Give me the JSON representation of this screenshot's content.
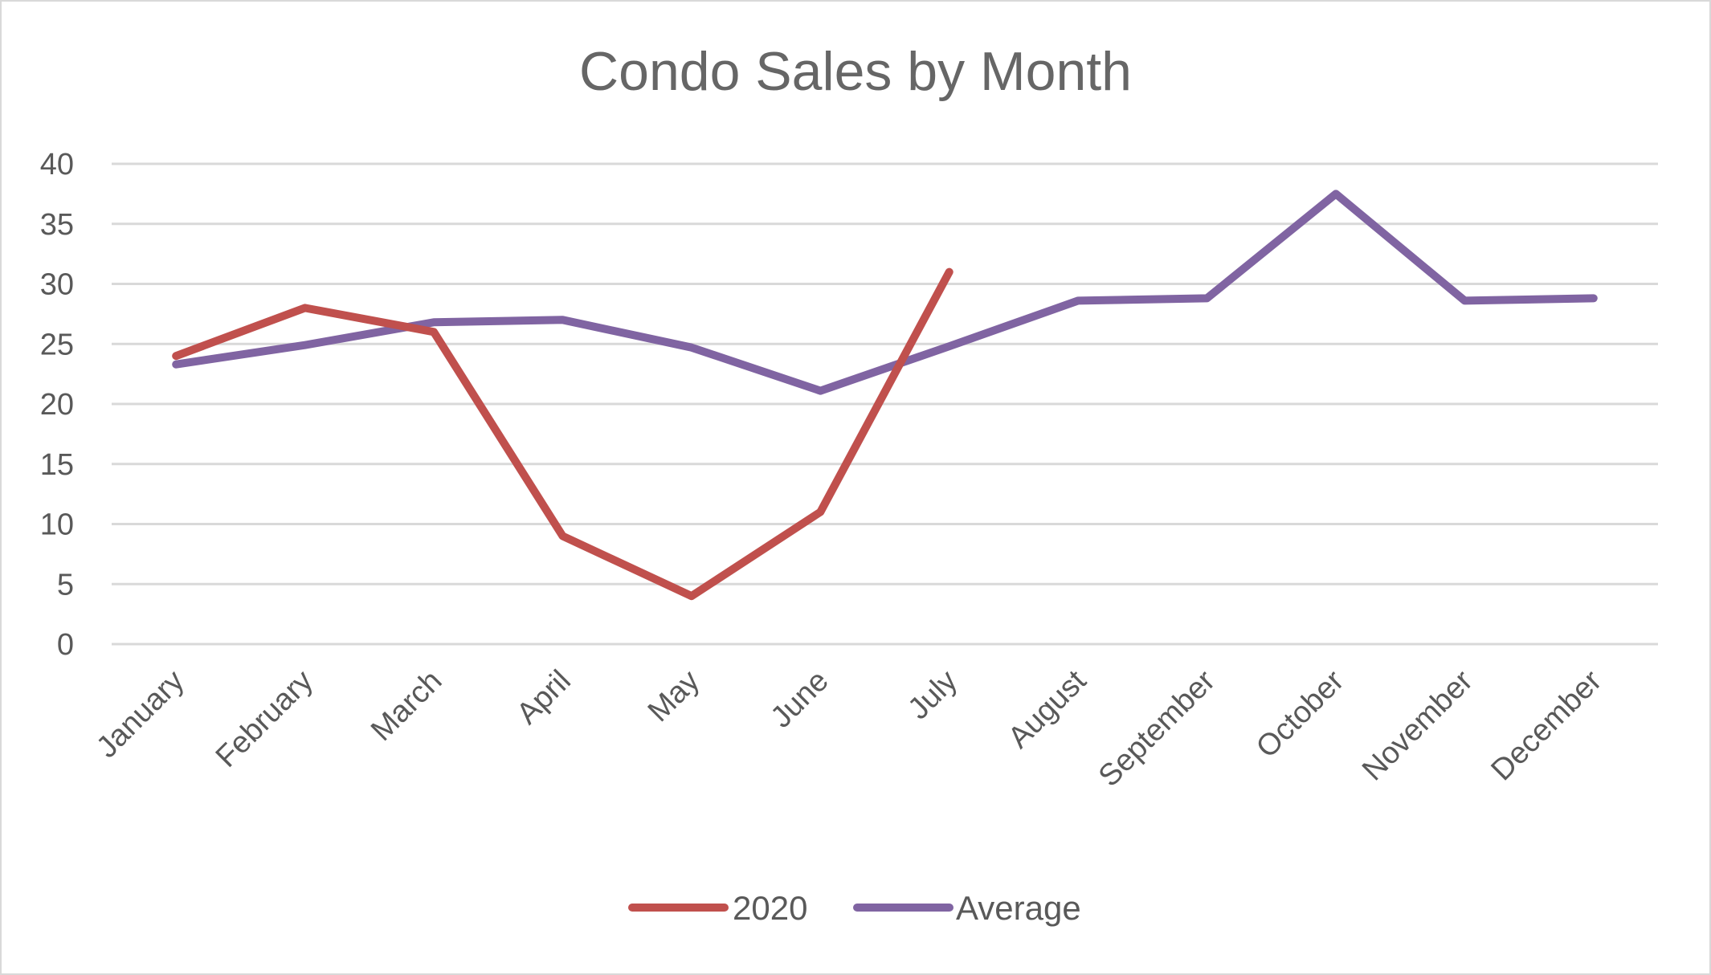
{
  "chart_data": {
    "type": "line",
    "title": "Condo Sales by Month",
    "xlabel": "",
    "ylabel": "",
    "categories": [
      "January",
      "February",
      "March",
      "April",
      "May",
      "June",
      "July",
      "August",
      "September",
      "October",
      "November",
      "December"
    ],
    "yticks": [
      "0",
      "5",
      "10",
      "15",
      "20",
      "25",
      "30",
      "35",
      "40"
    ],
    "ylim": [
      0,
      40
    ],
    "grid": true,
    "legend_position": "bottom",
    "series": [
      {
        "name": "2020",
        "color": "#c0504d",
        "values": [
          24,
          28,
          26,
          9,
          4,
          11,
          31,
          null,
          null,
          null,
          null,
          null
        ]
      },
      {
        "name": "Average",
        "color": "#8064a2",
        "values": [
          23.3,
          24.9,
          26.8,
          27,
          24.7,
          21.1,
          24.8,
          28.6,
          28.8,
          37.5,
          28.6,
          28.8
        ]
      }
    ]
  }
}
